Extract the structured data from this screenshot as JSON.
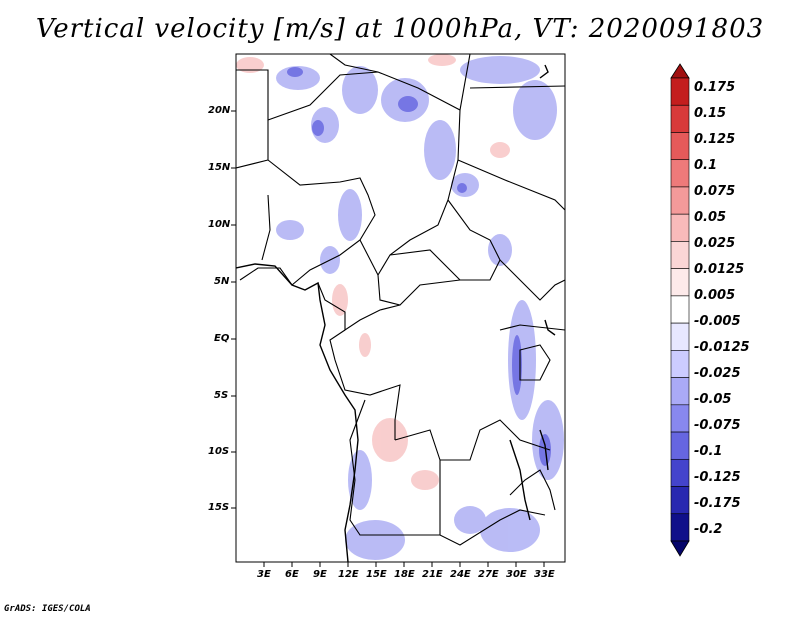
{
  "title": "Vertical velocity [m/s] at 1000hPa, VT: 2020091803",
  "credit": "GrADS: IGES/COLA",
  "map": {
    "lat_ticks": [
      "20N",
      "15N",
      "10N",
      "5N",
      "EQ",
      "5S",
      "10S",
      "15S"
    ],
    "lon_ticks": [
      "3E",
      "6E",
      "9E",
      "12E",
      "15E",
      "18E",
      "21E",
      "24E",
      "27E",
      "30E",
      "33E"
    ]
  },
  "colorbar": {
    "labels": [
      "0.175",
      "0.15",
      "0.125",
      "0.1",
      "0.075",
      "0.05",
      "0.025",
      "0.0125",
      "0.005",
      "-0.005",
      "-0.0125",
      "-0.025",
      "-0.05",
      "-0.075",
      "-0.1",
      "-0.125",
      "-0.175",
      "-0.2"
    ],
    "colors": [
      "#a01010",
      "#c41e1e",
      "#d83a3a",
      "#e55a5a",
      "#ee7a7a",
      "#f49a9a",
      "#f8baba",
      "#fbd6d6",
      "#fdeaea",
      "#ffffff",
      "#e8e8ff",
      "#ccccff",
      "#aaaaf6",
      "#8888ee",
      "#6666e0",
      "#4444cc",
      "#2828b0",
      "#10108a",
      "#05056a"
    ]
  }
}
